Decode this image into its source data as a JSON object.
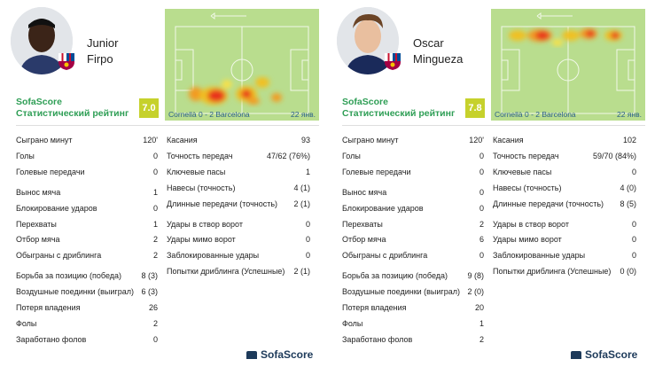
{
  "players": [
    {
      "first_name": "Junior",
      "last_name": "Firpo",
      "brand": "SofaScore",
      "rating_label": "Статистический рейтинг",
      "rating": "7.0",
      "rating_color": "#c6d12c",
      "match": "Cornellà 0 - 2 Barcelona",
      "date": "22 янв.",
      "stats_left": [
        {
          "label": "Сыграно минут",
          "value": "120'"
        },
        {
          "label": "Голы",
          "value": "0"
        },
        {
          "label": "Голевые передачи",
          "value": "0"
        },
        {
          "label": "Вынос мяча",
          "value": "1"
        },
        {
          "label": "Блокирование ударов",
          "value": "0"
        },
        {
          "label": "Перехваты",
          "value": "1"
        },
        {
          "label": "Отбор мяча",
          "value": "2"
        },
        {
          "label": "Обыграны с дриблинга",
          "value": "2"
        },
        {
          "label": "Борьба за позицию (победа)",
          "value": "8 (3)"
        },
        {
          "label": "Воздушные поединки (выиграл)",
          "value": "6 (3)"
        },
        {
          "label": "Потеря владения",
          "value": "26"
        },
        {
          "label": "Фолы",
          "value": "2"
        },
        {
          "label": "Заработано фолов",
          "value": "0"
        }
      ],
      "stats_right": [
        {
          "label": "Касания",
          "value": "93"
        },
        {
          "label": "Точность передач",
          "value": "47/62 (76%)"
        },
        {
          "label": "Ключевые пасы",
          "value": "1"
        },
        {
          "label": "Навесы (точность)",
          "value": "4 (1)"
        },
        {
          "label": "Длинные передачи (точность)",
          "value": "2 (1)"
        },
        {
          "label": "Удары в створ ворот",
          "value": "0"
        },
        {
          "label": "Удары мимо ворот",
          "value": "0"
        },
        {
          "label": "Заблокированные удары",
          "value": "0"
        },
        {
          "label": "Попытки дриблинга (Успешные)",
          "value": "2 (1)"
        }
      ]
    },
    {
      "first_name": "Oscar",
      "last_name": "Mingueza",
      "brand": "SofaScore",
      "rating_label": "Статистический рейтинг",
      "rating": "7.8",
      "rating_color": "#c6d12c",
      "match": "Cornellà 0 - 2 Barcelona",
      "date": "22 янв.",
      "stats_left": [
        {
          "label": "Сыграно минут",
          "value": "120'"
        },
        {
          "label": "Голы",
          "value": "0"
        },
        {
          "label": "Голевые передачи",
          "value": "0"
        },
        {
          "label": "Вынос мяча",
          "value": "0"
        },
        {
          "label": "Блокирование ударов",
          "value": "0"
        },
        {
          "label": "Перехваты",
          "value": "2"
        },
        {
          "label": "Отбор мяча",
          "value": "6"
        },
        {
          "label": "Обыграны с дриблинга",
          "value": "0"
        },
        {
          "label": "Борьба за позицию (победа)",
          "value": "9 (8)"
        },
        {
          "label": "Воздушные поединки (выиграл)",
          "value": "2 (0)"
        },
        {
          "label": "Потеря владения",
          "value": "20"
        },
        {
          "label": "Фолы",
          "value": "1"
        },
        {
          "label": "Заработано фолов",
          "value": "2"
        }
      ],
      "stats_right": [
        {
          "label": "Касания",
          "value": "102"
        },
        {
          "label": "Точность передач",
          "value": "59/70 (84%)"
        },
        {
          "label": "Ключевые пасы",
          "value": "0"
        },
        {
          "label": "Навесы (точность)",
          "value": "4 (0)"
        },
        {
          "label": "Длинные передачи (точность)",
          "value": "8 (5)"
        },
        {
          "label": "Удары в створ ворот",
          "value": "0"
        },
        {
          "label": "Удары мимо ворот",
          "value": "0"
        },
        {
          "label": "Заблокированные удары",
          "value": "0"
        },
        {
          "label": "Попытки дриблинга (Успешные)",
          "value": "0 (0)"
        }
      ]
    }
  ],
  "footer_brand": "SofaScore",
  "colors": {
    "brand_green": "#2e9e55",
    "pitch": "#b9dd8e",
    "heat_hot": "#e8321e",
    "footer": "#1d3a5a"
  }
}
